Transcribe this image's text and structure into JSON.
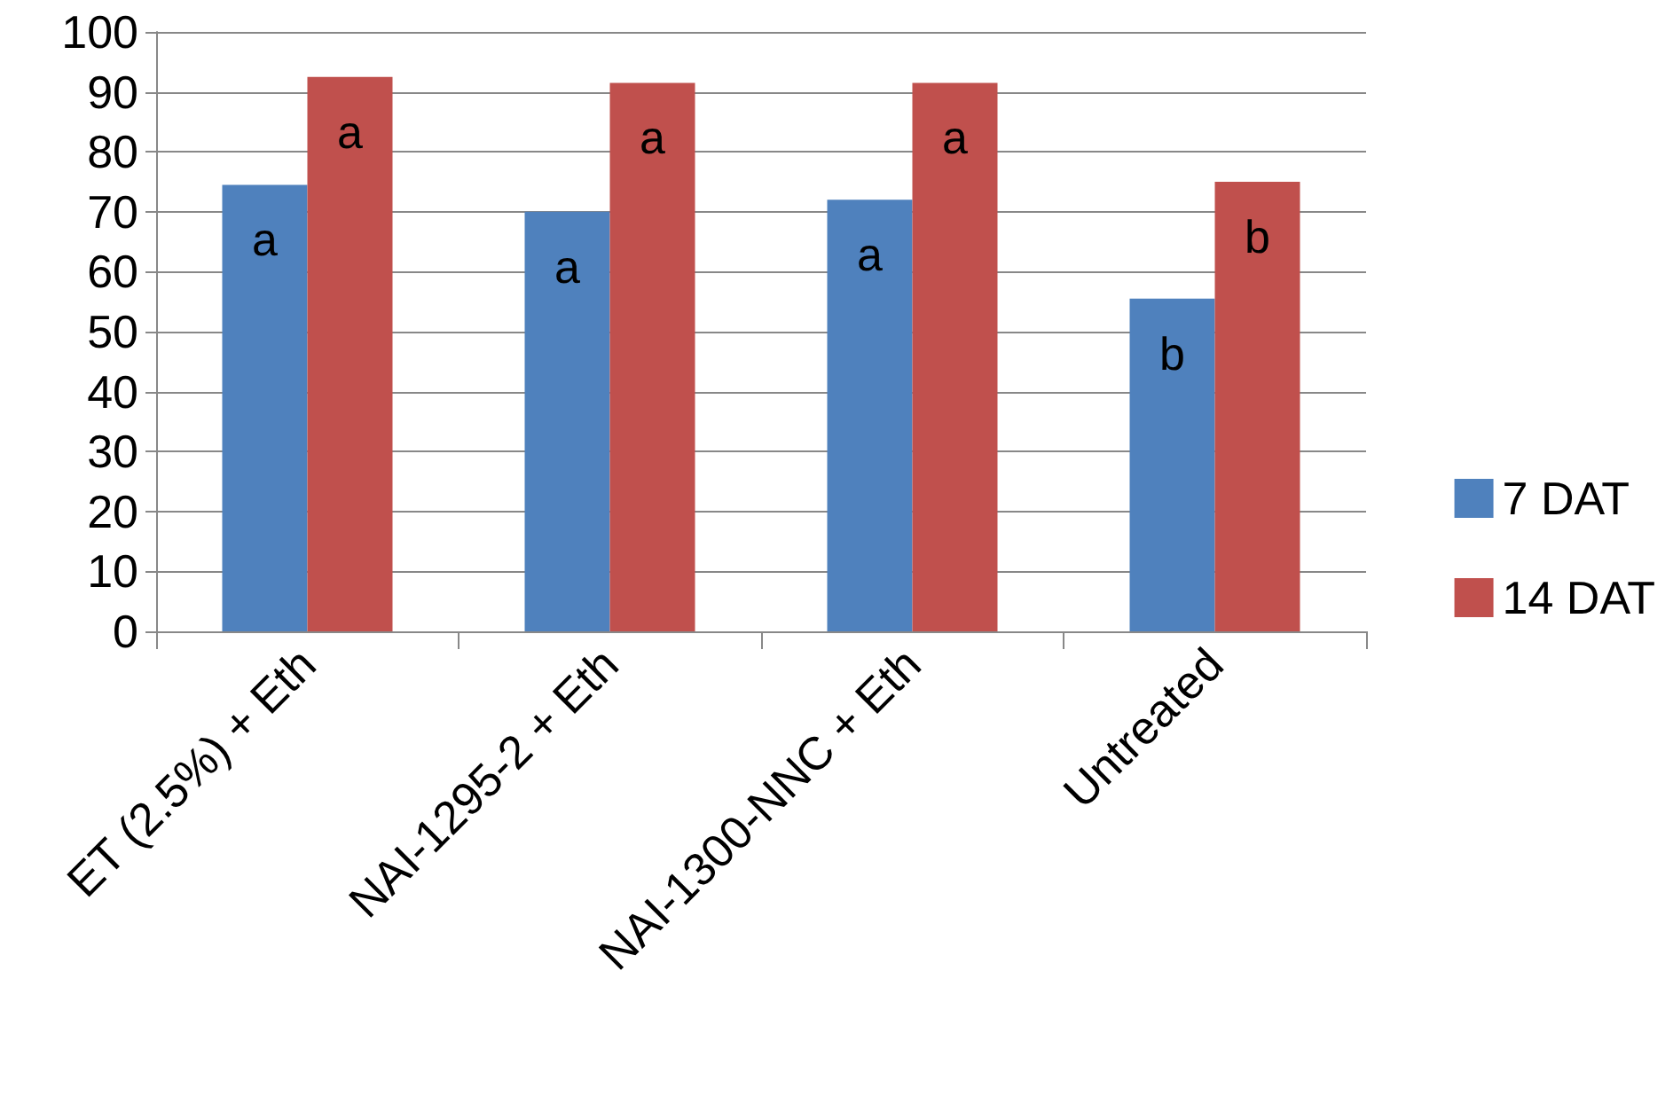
{
  "chart_data": {
    "type": "bar",
    "categories": [
      "ET (2.5%) + Eth",
      "NAI-1295-2 + Eth",
      "NAI-1300-NNC + Eth",
      "Untreated"
    ],
    "series": [
      {
        "name": "7 DAT",
        "color": "#4f81bd",
        "values": [
          74.5,
          70,
          72,
          55.5
        ],
        "value_labels": [
          "a",
          "a",
          "a",
          "b"
        ]
      },
      {
        "name": "14 DAT",
        "color": "#c0504d",
        "values": [
          92.5,
          91.5,
          91.5,
          75
        ],
        "value_labels": [
          "a",
          "a",
          "a",
          "b"
        ]
      }
    ],
    "ylim": [
      0,
      100
    ],
    "yticks": [
      0,
      10,
      20,
      30,
      40,
      50,
      60,
      70,
      80,
      90,
      100
    ],
    "grid": "y",
    "legend": "right"
  }
}
